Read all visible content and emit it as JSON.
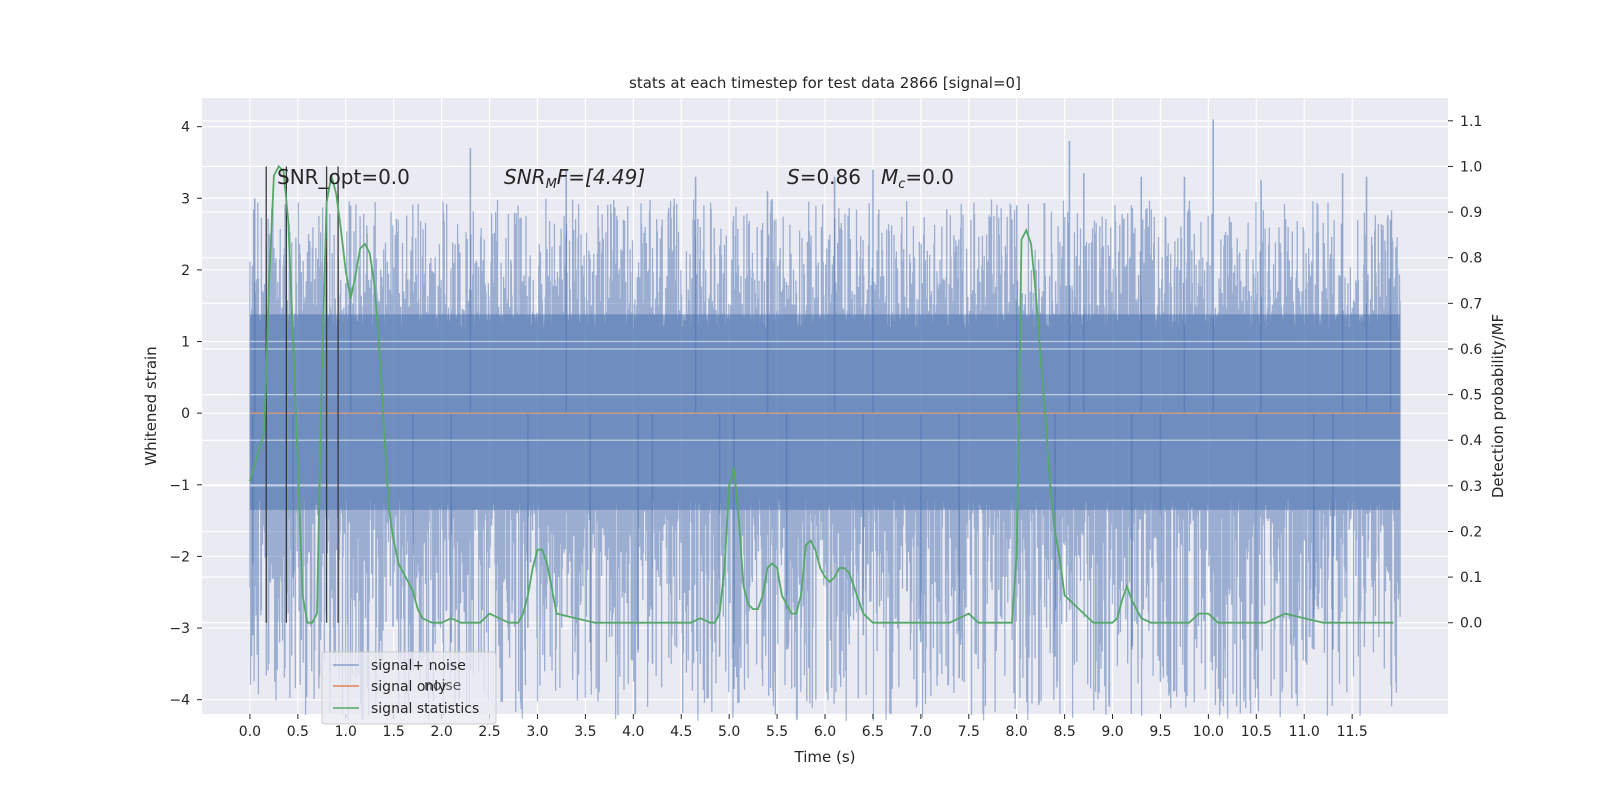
{
  "chart_data": {
    "type": "line",
    "title": "stats at each timestep for test data 2866 [signal=0]",
    "xlabel": "Time (s)",
    "ylabel": "Whitened strain",
    "y2label": "Detection probability/MF",
    "xlim": [
      -0.5,
      12.5
    ],
    "ylim": [
      -4.2,
      4.4
    ],
    "y2lim": [
      -0.2,
      1.15
    ],
    "x_ticks": [
      0.0,
      0.5,
      1.0,
      1.5,
      2.0,
      2.5,
      3.0,
      3.5,
      4.0,
      4.5,
      5.0,
      5.5,
      6.0,
      6.5,
      7.0,
      7.5,
      8.0,
      8.5,
      9.0,
      9.5,
      10.0,
      10.5,
      11.0,
      11.5
    ],
    "x_tick_labels": [
      "0.0",
      "0.5",
      "1.0",
      "1.5",
      "2.0",
      "2.5",
      "3.0",
      "3.5",
      "4.0",
      "4.5",
      "5.0",
      "5.5",
      "6.0",
      "6.5",
      "7.0",
      "7.5",
      "8.0",
      "8.5",
      "9.0",
      "9.5",
      "10.0",
      "10.5",
      "11.0",
      "11.5"
    ],
    "y_ticks": [
      -4,
      -3,
      -2,
      -1,
      0,
      1,
      2,
      3,
      4
    ],
    "y_tick_labels": [
      "−4",
      "−3",
      "−2",
      "−1",
      "0",
      "1",
      "2",
      "3",
      "4"
    ],
    "y2_ticks": [
      0.0,
      0.1,
      0.2,
      0.3,
      0.4,
      0.5,
      0.6,
      0.7,
      0.8,
      0.9,
      1.0,
      1.1
    ],
    "y2_tick_labels": [
      "0.0",
      "0.1",
      "0.2",
      "0.3",
      "0.4",
      "0.5",
      "0.6",
      "0.7",
      "0.8",
      "0.9",
      "1.0",
      "1.1"
    ],
    "grid": true,
    "legend_position": "lower-left",
    "annotations": {
      "snr_opt": "SNR_opt=0.0",
      "snr_mf_sym": "SNR",
      "snr_mf_sub": "M",
      "snr_mf_rest": "F=[4.49]",
      "s_sym": "S",
      "s_rest": "=0.86",
      "mc_sym": "M",
      "mc_sub": "c",
      "mc_rest": "=0.0"
    },
    "legend_ghost_text": "noise",
    "series": [
      {
        "name": "signal+ noise",
        "color": "#4c72b0",
        "x_start": 0.0,
        "x_end": 12.0,
        "band_q": [
          -1.35,
          1.38
        ],
        "envelope": [
          -3.1,
          3.0
        ],
        "spikes": [
          {
            "x": 0.03,
            "y": -3.1
          },
          {
            "x": 0.05,
            "y": 3.0
          },
          {
            "x": 0.45,
            "y": -2.3
          },
          {
            "x": 1.05,
            "y": 2.9
          },
          {
            "x": 1.7,
            "y": -3.6
          },
          {
            "x": 2.3,
            "y": 3.7
          },
          {
            "x": 2.1,
            "y": -3.2
          },
          {
            "x": 2.9,
            "y": -3.0
          },
          {
            "x": 3.3,
            "y": 3.4
          },
          {
            "x": 3.55,
            "y": -3.2
          },
          {
            "x": 4.05,
            "y": -3.3
          },
          {
            "x": 4.2,
            "y": -3.5
          },
          {
            "x": 4.65,
            "y": 3.3
          },
          {
            "x": 4.9,
            "y": -3.4
          },
          {
            "x": 5.05,
            "y": -3.85
          },
          {
            "x": 5.4,
            "y": 3.1
          },
          {
            "x": 5.6,
            "y": -3.3
          },
          {
            "x": 6.1,
            "y": 3.3
          },
          {
            "x": 6.4,
            "y": -3.1
          },
          {
            "x": 6.5,
            "y": 3.4
          },
          {
            "x": 7.0,
            "y": -3.2
          },
          {
            "x": 7.4,
            "y": -3.7
          },
          {
            "x": 8.0,
            "y": 2.9
          },
          {
            "x": 8.4,
            "y": -3.4
          },
          {
            "x": 8.55,
            "y": 3.8
          },
          {
            "x": 8.7,
            "y": 3.35
          },
          {
            "x": 9.2,
            "y": -3.3
          },
          {
            "x": 9.3,
            "y": 3.3
          },
          {
            "x": 9.5,
            "y": -3.75
          },
          {
            "x": 9.75,
            "y": 3.3
          },
          {
            "x": 10.05,
            "y": 4.1
          },
          {
            "x": 10.55,
            "y": 3.25
          },
          {
            "x": 10.5,
            "y": -3.3
          },
          {
            "x": 11.1,
            "y": -3.3
          },
          {
            "x": 11.3,
            "y": -3.3
          },
          {
            "x": 11.4,
            "y": 3.35
          },
          {
            "x": 11.65,
            "y": 3.3
          },
          {
            "x": 11.9,
            "y": 2.7
          }
        ]
      },
      {
        "name": "signal only",
        "color": "#dd8452",
        "x": [
          0.0,
          12.0
        ],
        "y": [
          0.0,
          0.0
        ]
      },
      {
        "name": "signal statistics",
        "color": "#55a868",
        "axis": "right",
        "x": [
          0.0,
          0.15,
          0.2,
          0.25,
          0.3,
          0.35,
          0.4,
          0.45,
          0.5,
          0.55,
          0.6,
          0.65,
          0.7,
          0.75,
          0.8,
          0.85,
          0.9,
          0.95,
          1.0,
          1.05,
          1.1,
          1.15,
          1.2,
          1.25,
          1.3,
          1.35,
          1.4,
          1.45,
          1.5,
          1.55,
          1.6,
          1.7,
          1.75,
          1.8,
          1.9,
          2.0,
          2.1,
          2.2,
          2.3,
          2.4,
          2.5,
          2.6,
          2.7,
          2.8,
          2.85,
          2.9,
          2.95,
          3.0,
          3.05,
          3.1,
          3.2,
          3.4,
          3.6,
          3.8,
          4.0,
          4.2,
          4.4,
          4.5,
          4.6,
          4.7,
          4.8,
          4.85,
          4.9,
          4.95,
          5.0,
          5.05,
          5.1,
          5.15,
          5.2,
          5.25,
          5.3,
          5.35,
          5.4,
          5.45,
          5.5,
          5.55,
          5.6,
          5.65,
          5.7,
          5.75,
          5.8,
          5.85,
          5.9,
          5.95,
          6.0,
          6.05,
          6.1,
          6.15,
          6.2,
          6.25,
          6.3,
          6.35,
          6.4,
          6.5,
          6.7,
          6.9,
          7.1,
          7.3,
          7.4,
          7.5,
          7.55,
          7.6,
          7.7,
          7.8,
          7.9,
          7.95,
          8.0,
          8.05,
          8.1,
          8.15,
          8.2,
          8.25,
          8.3,
          8.35,
          8.4,
          8.45,
          8.5,
          8.6,
          8.7,
          8.8,
          8.9,
          9.0,
          9.05,
          9.1,
          9.15,
          9.2,
          9.3,
          9.4,
          9.5,
          9.6,
          9.7,
          9.8,
          9.85,
          9.9,
          10.0,
          10.1,
          10.2,
          10.4,
          10.6,
          10.7,
          10.8,
          11.0,
          11.2,
          11.4,
          11.6,
          11.8,
          11.93
        ],
        "y": [
          0.31,
          0.42,
          0.75,
          0.98,
          1.0,
          0.99,
          0.88,
          0.62,
          0.35,
          0.06,
          0.0,
          0.0,
          0.02,
          0.55,
          0.92,
          0.98,
          0.94,
          0.86,
          0.77,
          0.71,
          0.76,
          0.82,
          0.83,
          0.81,
          0.74,
          0.6,
          0.42,
          0.25,
          0.18,
          0.13,
          0.11,
          0.07,
          0.03,
          0.01,
          0.0,
          0.0,
          0.01,
          0.0,
          0.0,
          0.0,
          0.02,
          0.01,
          0.0,
          0.0,
          0.02,
          0.06,
          0.12,
          0.16,
          0.16,
          0.13,
          0.02,
          0.01,
          0.0,
          0.0,
          0.0,
          0.0,
          0.0,
          0.0,
          0.0,
          0.01,
          0.0,
          0.0,
          0.02,
          0.12,
          0.3,
          0.34,
          0.23,
          0.08,
          0.04,
          0.03,
          0.03,
          0.06,
          0.12,
          0.13,
          0.12,
          0.06,
          0.04,
          0.02,
          0.02,
          0.06,
          0.17,
          0.18,
          0.16,
          0.12,
          0.1,
          0.09,
          0.1,
          0.12,
          0.12,
          0.11,
          0.08,
          0.05,
          0.02,
          0.0,
          0.0,
          0.0,
          0.0,
          0.0,
          0.01,
          0.02,
          0.01,
          0.0,
          0.0,
          0.0,
          0.0,
          0.0,
          0.15,
          0.84,
          0.86,
          0.83,
          0.72,
          0.58,
          0.45,
          0.3,
          0.2,
          0.14,
          0.06,
          0.04,
          0.02,
          0.0,
          0.0,
          0.0,
          0.01,
          0.05,
          0.08,
          0.05,
          0.01,
          0.0,
          0.0,
          0.0,
          0.0,
          0.0,
          0.01,
          0.02,
          0.02,
          0.0,
          0.0,
          0.0,
          0.0,
          0.01,
          0.02,
          0.01,
          0.0,
          0.0,
          0.0,
          0.0,
          0.0
        ],
        "event_marks_x": [
          0.17,
          0.38,
          0.8,
          0.92
        ]
      }
    ]
  }
}
